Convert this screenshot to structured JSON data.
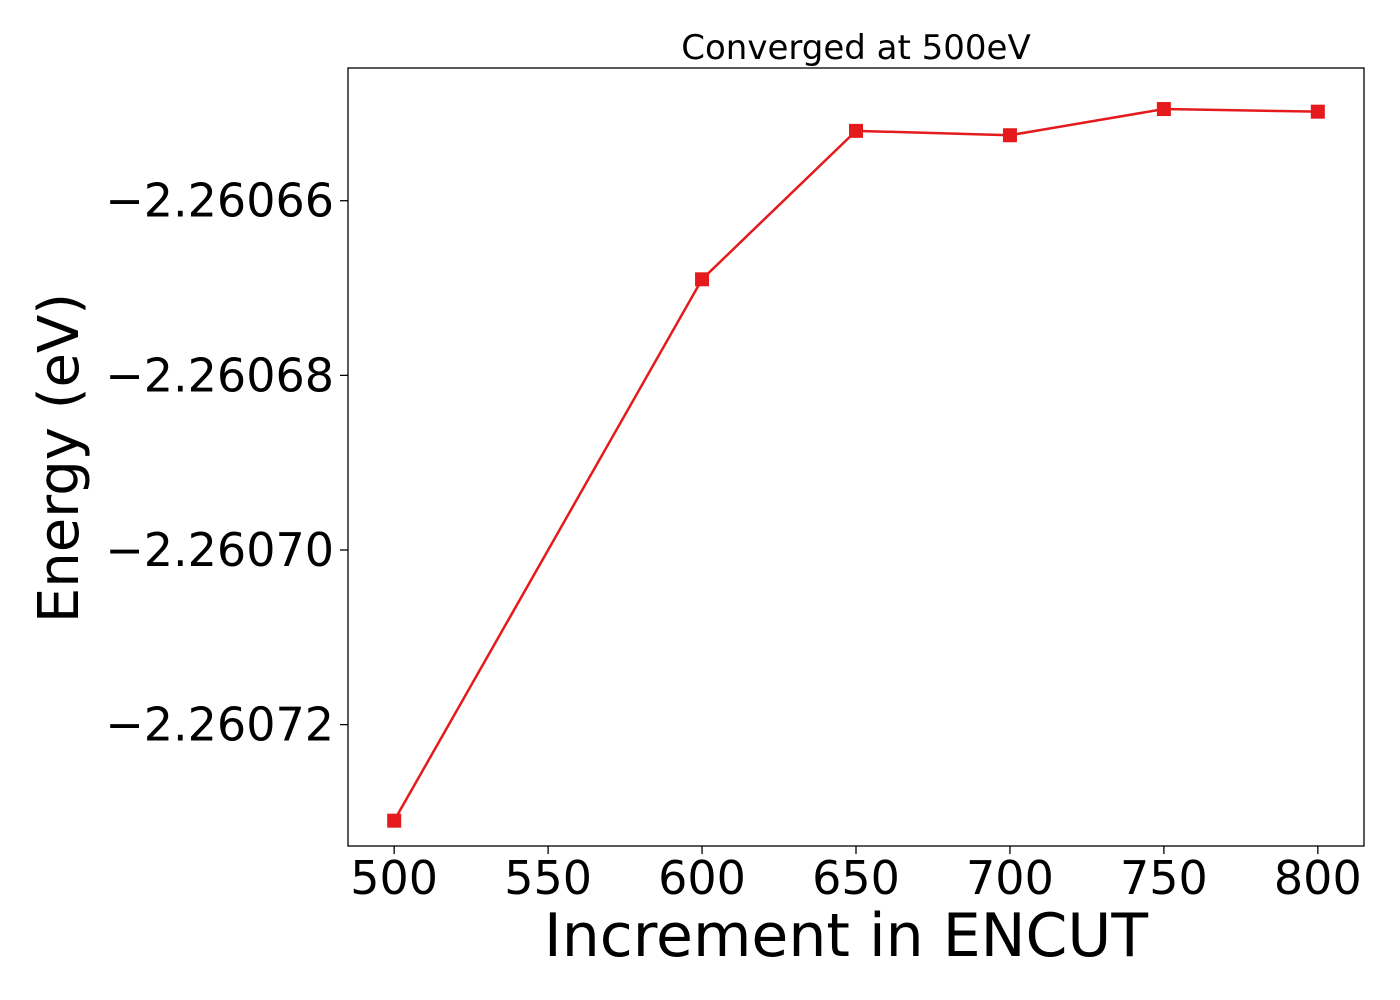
{
  "chart_data": {
    "type": "line",
    "title": "Converged at 500eV",
    "xlabel": "Increment in ENCUT",
    "ylabel": "Energy (eV)",
    "x": [
      500,
      600,
      650,
      700,
      750,
      800
    ],
    "series": [
      {
        "values": [
          -2.260731,
          -2.260669,
          -2.260652,
          -2.2606525,
          -2.2606495,
          -2.2606498
        ],
        "color": "#e41a1c",
        "marker": "square"
      }
    ],
    "xticks": [
      500,
      550,
      600,
      650,
      700,
      750,
      800
    ],
    "xtick_labels": [
      "500",
      "550",
      "600",
      "650",
      "700",
      "750",
      "800"
    ],
    "yticks": [
      -2.26066,
      -2.26068,
      -2.2607,
      -2.26072
    ],
    "ytick_labels": [
      "−2.26066",
      "−2.26068",
      "−2.26070",
      "−2.26072"
    ],
    "xlim": [
      485,
      815
    ],
    "ylim": [
      -2.2607339,
      -2.2606448
    ],
    "grid": false,
    "legend": "none"
  }
}
